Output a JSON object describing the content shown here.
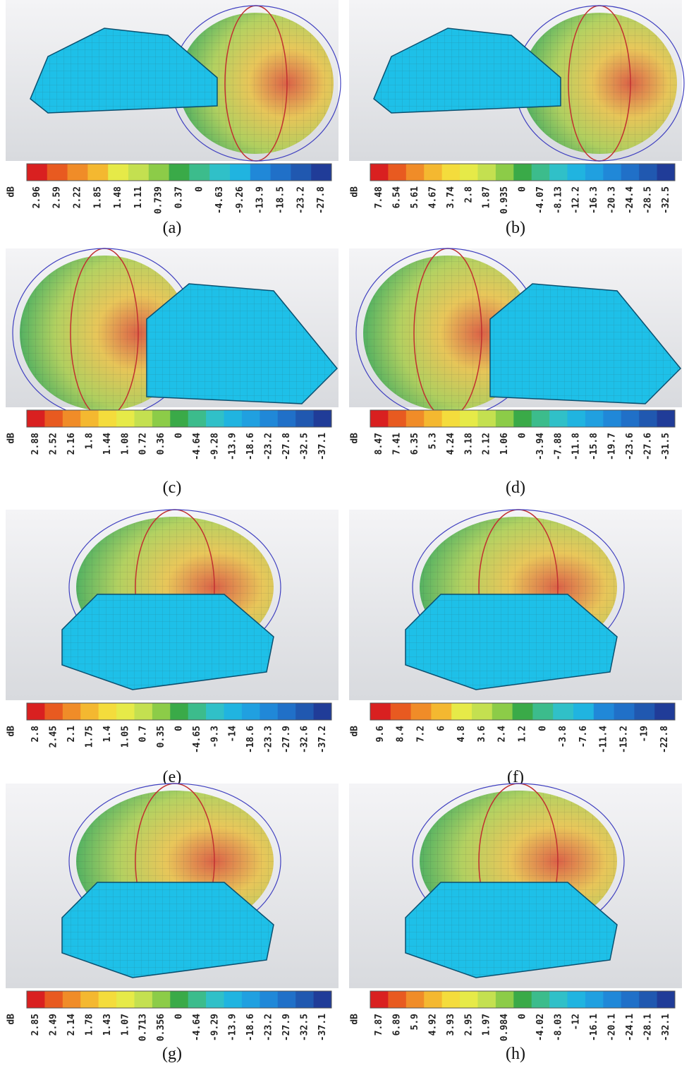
{
  "panels": [
    {
      "caption": "(a)",
      "unit": "dB",
      "ticks": [
        "2.96",
        "2.59",
        "2.22",
        "1.85",
        "1.48",
        "1.11",
        "0.739",
        "0.37",
        "0",
        "-4.63",
        "-9.26",
        "-13.9",
        "-18.5",
        "-23.2",
        "-27.8"
      ]
    },
    {
      "caption": "(b)",
      "unit": "dB",
      "ticks": [
        "7.48",
        "6.54",
        "5.61",
        "4.67",
        "3.74",
        "2.8",
        "1.87",
        "0.935",
        "0",
        "-4.07",
        "-8.13",
        "-12.2",
        "-16.3",
        "-20.3",
        "-24.4",
        "-28.5",
        "-32.5"
      ]
    },
    {
      "caption": "(c)",
      "unit": "dB",
      "ticks": [
        "2.88",
        "2.52",
        "2.16",
        "1.8",
        "1.44",
        "1.08",
        "0.72",
        "0.36",
        "0",
        "-4.64",
        "-9.28",
        "-13.9",
        "-18.6",
        "-23.2",
        "-27.8",
        "-32.5",
        "-37.1"
      ]
    },
    {
      "caption": "(d)",
      "unit": "dB",
      "ticks": [
        "8.47",
        "7.41",
        "6.35",
        "5.3",
        "4.24",
        "3.18",
        "2.12",
        "1.06",
        "0",
        "-3.94",
        "-7.88",
        "-11.8",
        "-15.8",
        "-19.7",
        "-23.6",
        "-27.6",
        "-31.5"
      ]
    },
    {
      "caption": "(e)",
      "unit": "dB",
      "ticks": [
        "2.8",
        "2.45",
        "2.1",
        "1.75",
        "1.4",
        "1.05",
        "0.7",
        "0.35",
        "0",
        "-4.65",
        "-9.3",
        "-14",
        "-18.6",
        "-23.3",
        "-27.9",
        "-32.6",
        "-37.2"
      ]
    },
    {
      "caption": "(f)",
      "unit": "dB",
      "ticks": [
        "9.6",
        "8.4",
        "7.2",
        "6",
        "4.8",
        "3.6",
        "2.4",
        "1.2",
        "0",
        "-3.8",
        "-7.6",
        "-11.4",
        "-15.2",
        "-19",
        "-22.8"
      ]
    },
    {
      "caption": "(g)",
      "unit": "dB",
      "ticks": [
        "2.85",
        "2.49",
        "2.14",
        "1.78",
        "1.43",
        "1.07",
        "0.713",
        "0.356",
        "0",
        "-4.64",
        "-9.29",
        "-13.9",
        "-18.6",
        "-23.2",
        "-27.9",
        "-32.5",
        "-37.1"
      ]
    },
    {
      "caption": "(h)",
      "unit": "dB",
      "ticks": [
        "7.87",
        "6.89",
        "5.9",
        "4.92",
        "3.93",
        "2.95",
        "1.97",
        "0.984",
        "0",
        "-4.02",
        "-8.03",
        "-12",
        "-16.1",
        "-20.1",
        "-24.1",
        "-28.1",
        "-32.1"
      ]
    }
  ]
}
